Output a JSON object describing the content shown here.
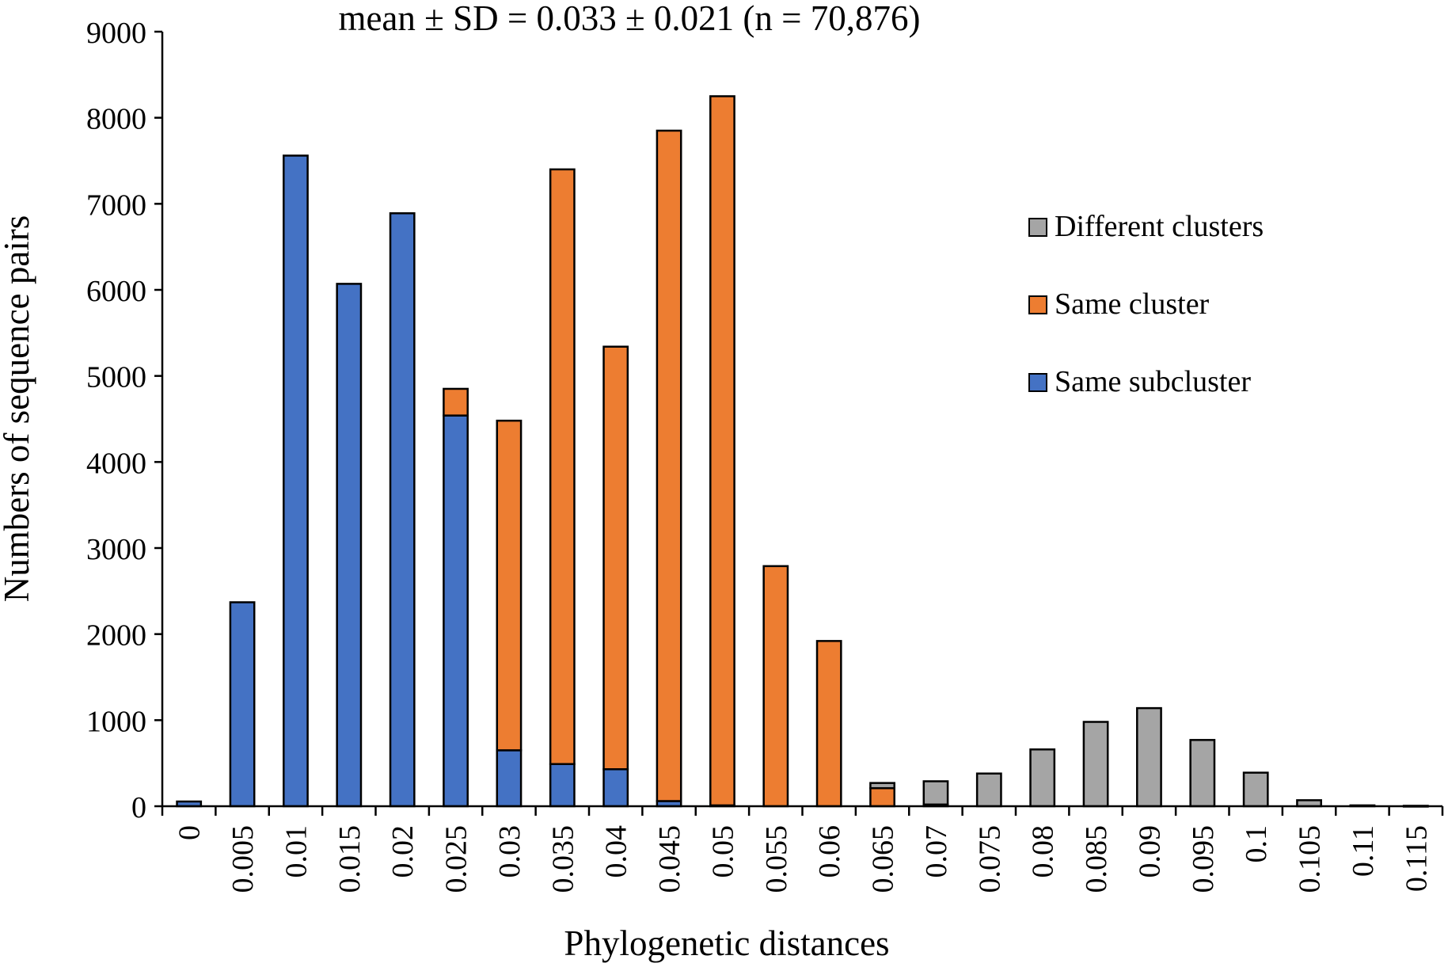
{
  "chart_data": {
    "type": "bar",
    "stacked": true,
    "title": "mean ± SD = 0.033 ± 0.021 (n = 70,876)",
    "xlabel": "Phylogenetic distances",
    "ylabel": "Numbers of sequence pairs",
    "ylim": [
      0,
      9000
    ],
    "yticks": [
      "0",
      "1000",
      "2000",
      "3000",
      "4000",
      "5000",
      "6000",
      "7000",
      "8000",
      "9000"
    ],
    "grid": false,
    "legend_position": "right",
    "categories": [
      "0",
      "0.005",
      "0.01",
      "0.015",
      "0.02",
      "0.025",
      "0.03",
      "0.035",
      "0.04",
      "0.045",
      "0.05",
      "0.055",
      "0.06",
      "0.065",
      "0.07",
      "0.075",
      "0.08",
      "0.085",
      "0.09",
      "0.095",
      "0.1",
      "0.105",
      "0.11",
      "0.115"
    ],
    "series": [
      {
        "name": "Same subcluster",
        "color": "#4472C4",
        "values": [
          55,
          2370,
          7560,
          6070,
          6890,
          4540,
          650,
          490,
          430,
          60,
          10,
          0,
          0,
          0,
          20,
          0,
          0,
          0,
          0,
          0,
          0,
          0,
          0,
          0
        ]
      },
      {
        "name": "Same cluster",
        "color": "#ED7D31",
        "values": [
          0,
          0,
          0,
          0,
          0,
          310,
          3830,
          6910,
          4910,
          7790,
          8240,
          2790,
          1920,
          210,
          0,
          0,
          0,
          0,
          0,
          0,
          0,
          0,
          0,
          0
        ]
      },
      {
        "name": "Different clusters",
        "color": "#A5A5A5",
        "values": [
          0,
          0,
          0,
          0,
          0,
          0,
          0,
          0,
          0,
          0,
          0,
          0,
          0,
          60,
          270,
          380,
          660,
          980,
          1140,
          770,
          390,
          70,
          10,
          5
        ]
      }
    ],
    "legend_order": [
      "Different clusters",
      "Same cluster",
      "Same subcluster"
    ]
  }
}
